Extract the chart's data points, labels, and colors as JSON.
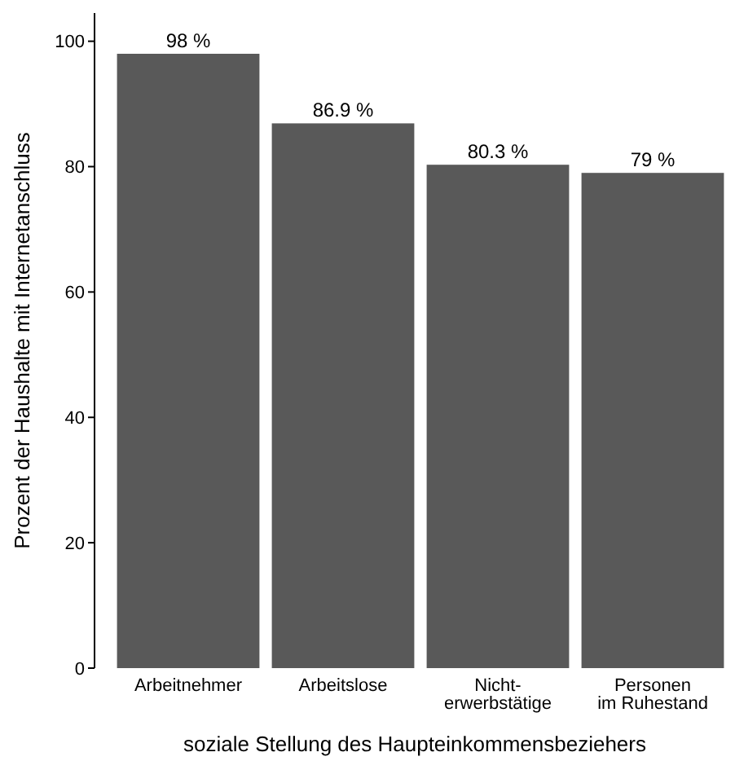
{
  "chart_data": {
    "type": "bar",
    "categories": [
      "Arbeitnehmer",
      "Arbeitslose",
      "Nicht-\nerwerbstätige",
      "Personen\nim Ruhestand"
    ],
    "values": [
      98,
      86.9,
      80.3,
      79
    ],
    "value_labels": [
      "98 %",
      "86.9 %",
      "80.3 %",
      "79 %"
    ],
    "color": "#595959",
    "xlabel": "soziale Stellung des Haupteinkommensbeziehers",
    "ylabel": "Prozent der Haushalte mit Internetanschluss",
    "ylim": [
      0,
      104.5
    ],
    "yticks": [
      0,
      20,
      40,
      60,
      80,
      100
    ],
    "grid": false
  }
}
